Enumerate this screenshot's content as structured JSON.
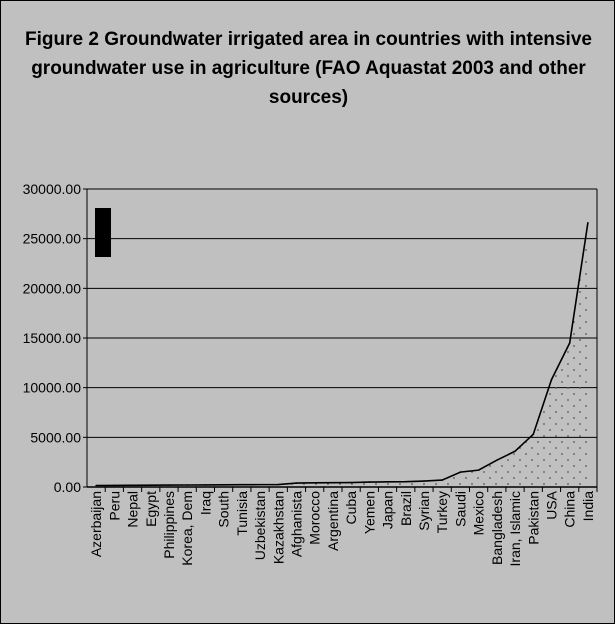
{
  "chart_data": {
    "type": "area",
    "title": "Figure 2 Groundwater irrigated area in countries with intensive groundwater use in agriculture (FAO Aquastat 2003 and other sources)",
    "xlabel": "",
    "ylabel": "",
    "ylim": [
      0,
      30000
    ],
    "yticks": [
      "0.00",
      "5000.00",
      "10000.00",
      "15000.00",
      "20000.00",
      "25000.00",
      "30000.00"
    ],
    "grid": true,
    "categories": [
      "Azerbaijan",
      "Peru",
      "Nepal",
      "Egypt",
      "Philippines",
      "Korea, Dem",
      "Iraq",
      "South",
      "Tunisia",
      "Uzbekistan",
      "Kazakhstan",
      "Afghanista",
      "Morocco",
      "Argentina",
      "Cuba",
      "Yemen",
      "Japan",
      "Brazil",
      "Syrian",
      "Turkey",
      "Saudi",
      "Mexico",
      "Bangladesh",
      "Iran, Islamic",
      "Pakistan",
      "USA",
      "China",
      "India"
    ],
    "values": [
      150,
      160,
      170,
      180,
      190,
      200,
      210,
      220,
      230,
      240,
      250,
      400,
      420,
      430,
      450,
      500,
      520,
      540,
      600,
      700,
      1500,
      1700,
      2700,
      3600,
      5300,
      10800,
      14500,
      26600
    ],
    "colors": {
      "background": "#c0c0c0",
      "fill_dots": "#555555",
      "line": "#000000"
    }
  }
}
